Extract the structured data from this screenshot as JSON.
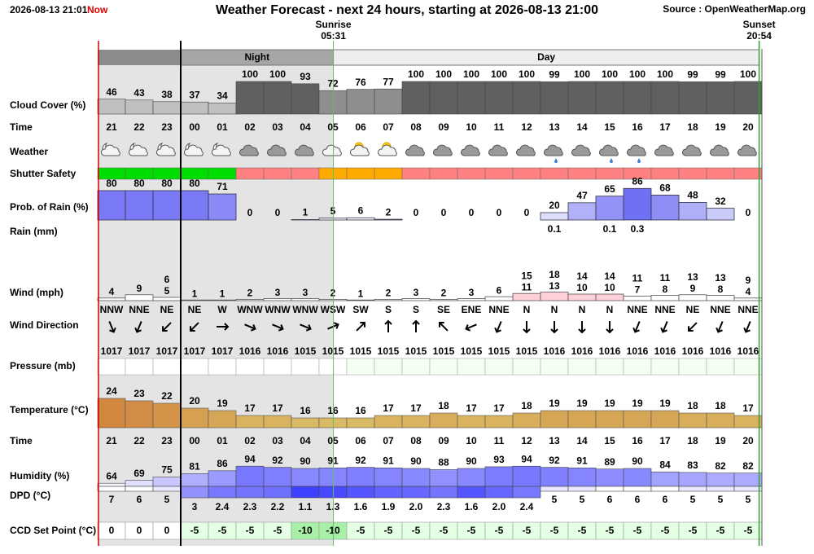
{
  "header": {
    "timestamp": "2026-08-13 21:01",
    "now": "Now",
    "title": "Weather Forecast - next 24 hours, starting at 2026-08-13 21:00",
    "source": "Source : OpenWeatherMap.org",
    "sunrise_label": "Sunrise",
    "sunrise_time": "05:31",
    "sunset_label": "Sunset",
    "sunset_time": "20:54",
    "night": "Night",
    "day": "Day"
  },
  "labels": {
    "cloud": "Cloud Cover (%)",
    "time": "Time",
    "weather": "Weather",
    "shutter": "Shutter Safety",
    "rain_prob": "Prob. of Rain (%)",
    "rain": "Rain (mm)",
    "wind": "Wind (mph)",
    "wind_dir": "Wind Direction",
    "pressure": "Pressure (mb)",
    "temperature": "Temperature (°C)",
    "time2": "Time",
    "humidity": "Humidity (%)",
    "dpd": "DPD (°C)",
    "ccd": "CCD Set Point (°C)"
  },
  "columns": {
    "time": [
      "21",
      "22",
      "23",
      "00",
      "01",
      "02",
      "03",
      "04",
      "05",
      "06",
      "07",
      "08",
      "09",
      "10",
      "11",
      "12",
      "13",
      "14",
      "15",
      "16",
      "17",
      "18",
      "19",
      "20"
    ],
    "cloud_cover": [
      46,
      43,
      38,
      37,
      34,
      100,
      100,
      93,
      72,
      76,
      77,
      100,
      100,
      100,
      100,
      100,
      99,
      100,
      100,
      100,
      100,
      99,
      99,
      100
    ],
    "shutter_colors": [
      "#00dd00",
      "#00dd00",
      "#00dd00",
      "#00dd00",
      "#00dd00",
      "#ff8080",
      "#ff8080",
      "#ff8080",
      "#ffaa00",
      "#ffaa00",
      "#ffaa00",
      "#ff8080",
      "#ff8080",
      "#ff8080",
      "#ff8080",
      "#ff8080",
      "#ff8080",
      "#ff8080",
      "#ff8080",
      "#ff8080",
      "#ff8080",
      "#ff8080",
      "#ff8080",
      "#ff8080"
    ],
    "rain_prob": [
      80,
      80,
      80,
      80,
      71,
      0,
      0,
      1,
      5,
      6,
      2,
      0,
      0,
      0,
      0,
      0,
      20,
      47,
      65,
      86,
      68,
      48,
      32,
      0
    ],
    "rain_mm": [
      null,
      null,
      null,
      null,
      null,
      null,
      null,
      null,
      null,
      null,
      null,
      null,
      null,
      null,
      null,
      null,
      0.1,
      null,
      0.1,
      0.3,
      null,
      null,
      null,
      null
    ],
    "wind": [
      4,
      9,
      5,
      1,
      1,
      2,
      3,
      3,
      2,
      1,
      2,
      3,
      2,
      3,
      6,
      11,
      13,
      10,
      10,
      7,
      8,
      9,
      8,
      4
    ],
    "gust": [
      null,
      null,
      6,
      null,
      null,
      null,
      null,
      null,
      null,
      null,
      null,
      null,
      null,
      null,
      null,
      15,
      18,
      14,
      14,
      11,
      11,
      13,
      13,
      9
    ],
    "wind_dir": [
      "NNW",
      "NNE",
      "NE",
      "NE",
      "W",
      "WNW",
      "WNW",
      "WNW",
      "WSW",
      "SW",
      "S",
      "S",
      "SE",
      "ENE",
      "NNE",
      "N",
      "N",
      "N",
      "N",
      "NNE",
      "NNE",
      "NE",
      "NNE",
      "NNE"
    ],
    "pressure": [
      1017,
      1017,
      1017,
      1017,
      1017,
      1016,
      1016,
      1015,
      1015,
      1015,
      1015,
      1015,
      1015,
      1015,
      1015,
      1015,
      1016,
      1016,
      1016,
      1016,
      1016,
      1016,
      1016,
      1016
    ],
    "temperature": [
      24,
      23,
      22,
      20,
      19,
      17,
      17,
      16,
      16,
      16,
      17,
      17,
      18,
      17,
      17,
      18,
      19,
      19,
      19,
      19,
      19,
      18,
      18,
      17
    ],
    "humidity": [
      64,
      69,
      75,
      81,
      86,
      94,
      92,
      90,
      91,
      92,
      91,
      90,
      88,
      90,
      93,
      94,
      92,
      91,
      89,
      90,
      84,
      83,
      82,
      82
    ],
    "dpd": [
      7,
      6,
      5,
      3,
      2.4,
      2.3,
      2.2,
      1.1,
      1.3,
      1.6,
      1.9,
      {
        "value": 2,
        "label": "2.0"
      },
      2.3,
      1.6,
      {
        "value": 2,
        "label": "2.0"
      },
      2.4,
      5,
      5,
      6,
      6,
      6,
      5,
      5,
      5
    ],
    "ccd": [
      0,
      0,
      0,
      -5,
      -5,
      -5,
      -5,
      -10,
      -10,
      -5,
      -5,
      -5,
      -5,
      -5,
      -5,
      -5,
      -5,
      -5,
      -5,
      -5,
      -5,
      -5,
      -5,
      -5
    ]
  }
}
